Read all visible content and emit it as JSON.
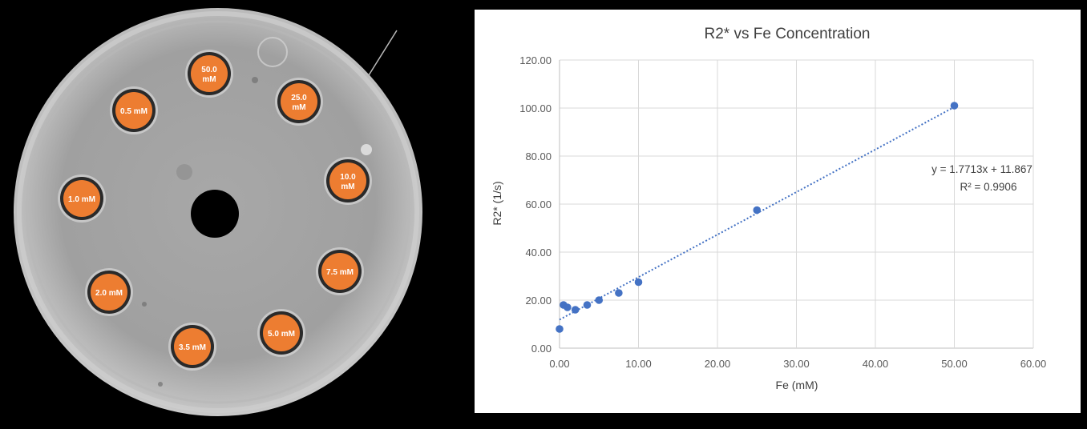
{
  "phantom": {
    "vials": [
      {
        "label": "50.0\nmM"
      },
      {
        "label": "25.0\nmM"
      },
      {
        "label": "10.0\nmM"
      },
      {
        "label": "7.5 mM"
      },
      {
        "label": "5.0 mM"
      },
      {
        "label": "3.5 mM"
      },
      {
        "label": "2.0 mM"
      },
      {
        "label": "1.0 mM"
      },
      {
        "label": "0.5 mM"
      }
    ],
    "vial_color": "#ED7D31"
  },
  "chart_data": {
    "type": "scatter",
    "title": "R2* vs Fe Concentration",
    "xlabel": "Fe (mM)",
    "ylabel": "R2* (1/s)",
    "xlim": [
      0,
      60
    ],
    "ylim": [
      0,
      120
    ],
    "x_ticks": [
      "0.00",
      "10.00",
      "20.00",
      "30.00",
      "40.00",
      "50.00",
      "60.00"
    ],
    "y_ticks": [
      "0.00",
      "20.00",
      "40.00",
      "60.00",
      "80.00",
      "100.00",
      "120.00"
    ],
    "grid": true,
    "series": [
      {
        "points": [
          {
            "x": 0,
            "y": 8
          },
          {
            "x": 0.5,
            "y": 18
          },
          {
            "x": 1.0,
            "y": 17
          },
          {
            "x": 2.0,
            "y": 16
          },
          {
            "x": 3.5,
            "y": 18
          },
          {
            "x": 5.0,
            "y": 20
          },
          {
            "x": 7.5,
            "y": 23
          },
          {
            "x": 10.0,
            "y": 27.5
          },
          {
            "x": 25.0,
            "y": 57.5
          },
          {
            "x": 50.0,
            "y": 101
          }
        ],
        "color": "#4472C4"
      }
    ],
    "trendline": {
      "slope": 1.7713,
      "intercept": 11.867,
      "x_range": [
        0,
        50
      ],
      "style": "dotted",
      "color": "#4472C4",
      "equation": "y = 1.7713x + 11.867",
      "r_squared": "R² = 0.9906"
    }
  }
}
